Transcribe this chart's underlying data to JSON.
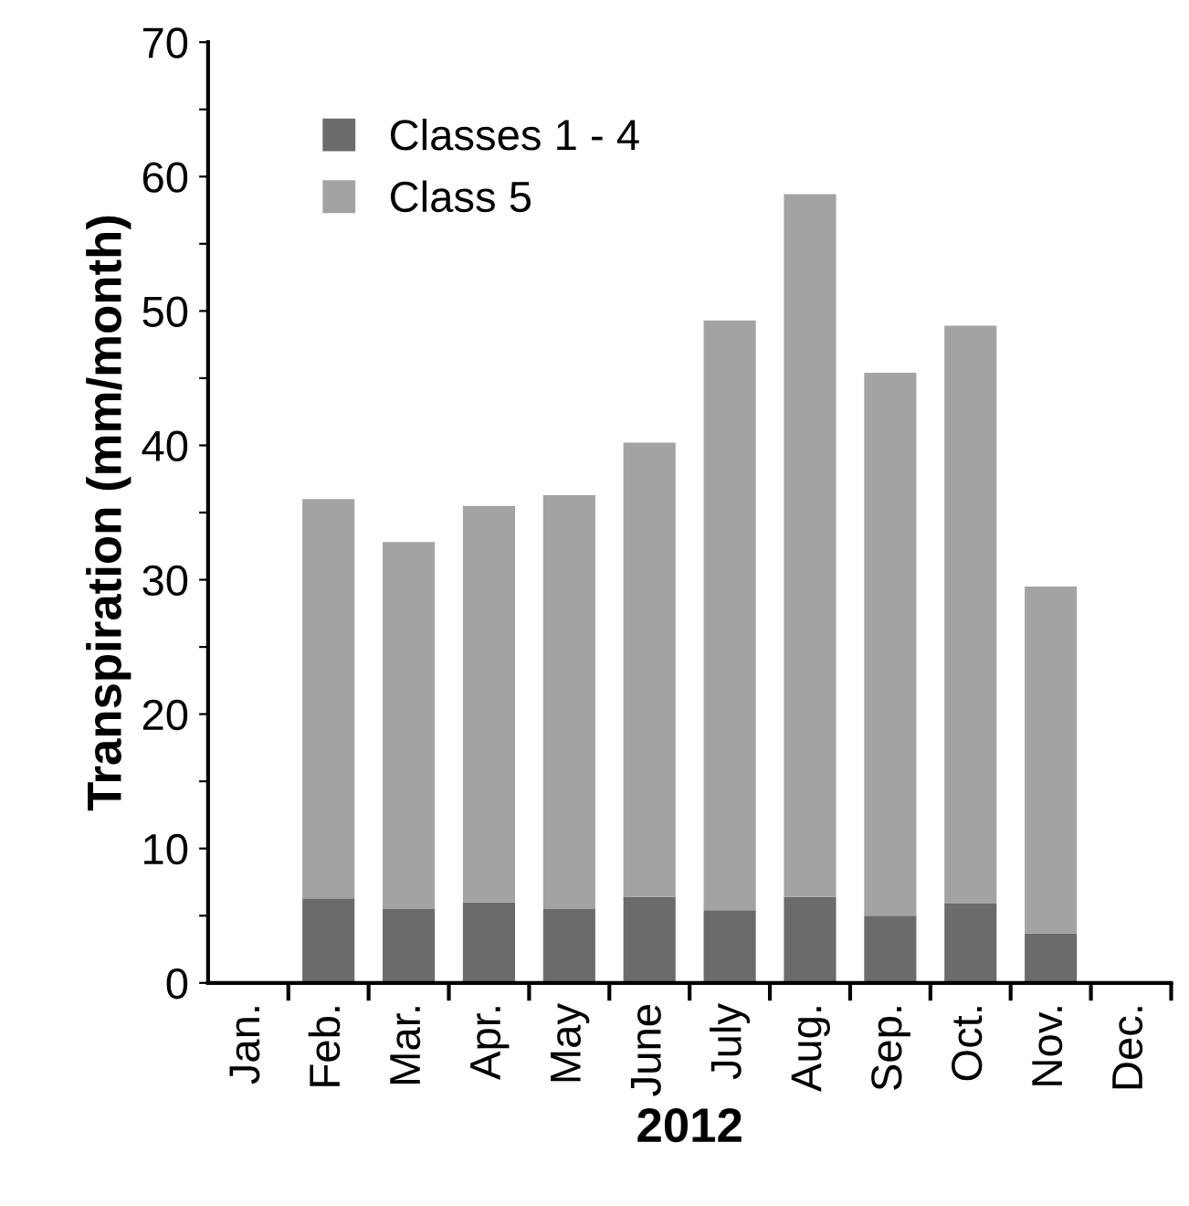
{
  "chart_data": {
    "type": "bar",
    "stacked": true,
    "xlabel": "2012",
    "ylabel": "Transpiration (mm/month)",
    "categories": [
      "Jan.",
      "Feb.",
      "Mar.",
      "Apr.",
      "May",
      "June",
      "July",
      "Aug.",
      "Sep.",
      "Oct.",
      "Nov.",
      "Dec."
    ],
    "series": [
      {
        "name": "Classes 1 - 4",
        "color": "#6b6b6b",
        "values": [
          null,
          6.3,
          5.5,
          6.0,
          5.5,
          6.4,
          5.4,
          6.4,
          5.0,
          5.9,
          3.7,
          null
        ]
      },
      {
        "name": "Class 5",
        "color": "#a3a3a3",
        "values": [
          null,
          29.7,
          27.3,
          29.5,
          30.8,
          33.8,
          43.9,
          52.3,
          40.4,
          43.0,
          25.8,
          null
        ]
      }
    ],
    "ylim": [
      0,
      70
    ],
    "yticks": [
      0,
      {
        "value": 5,
        "label": null
      },
      10,
      {
        "value": 15,
        "label": null
      },
      20,
      {
        "value": 25,
        "label": null
      },
      30,
      {
        "value": 35,
        "label": null
      },
      40,
      {
        "value": 45,
        "label": null
      },
      50,
      {
        "value": 55,
        "label": null
      },
      60,
      {
        "value": 65,
        "label": null
      },
      70
    ],
    "grid": false,
    "legend": "top left"
  }
}
